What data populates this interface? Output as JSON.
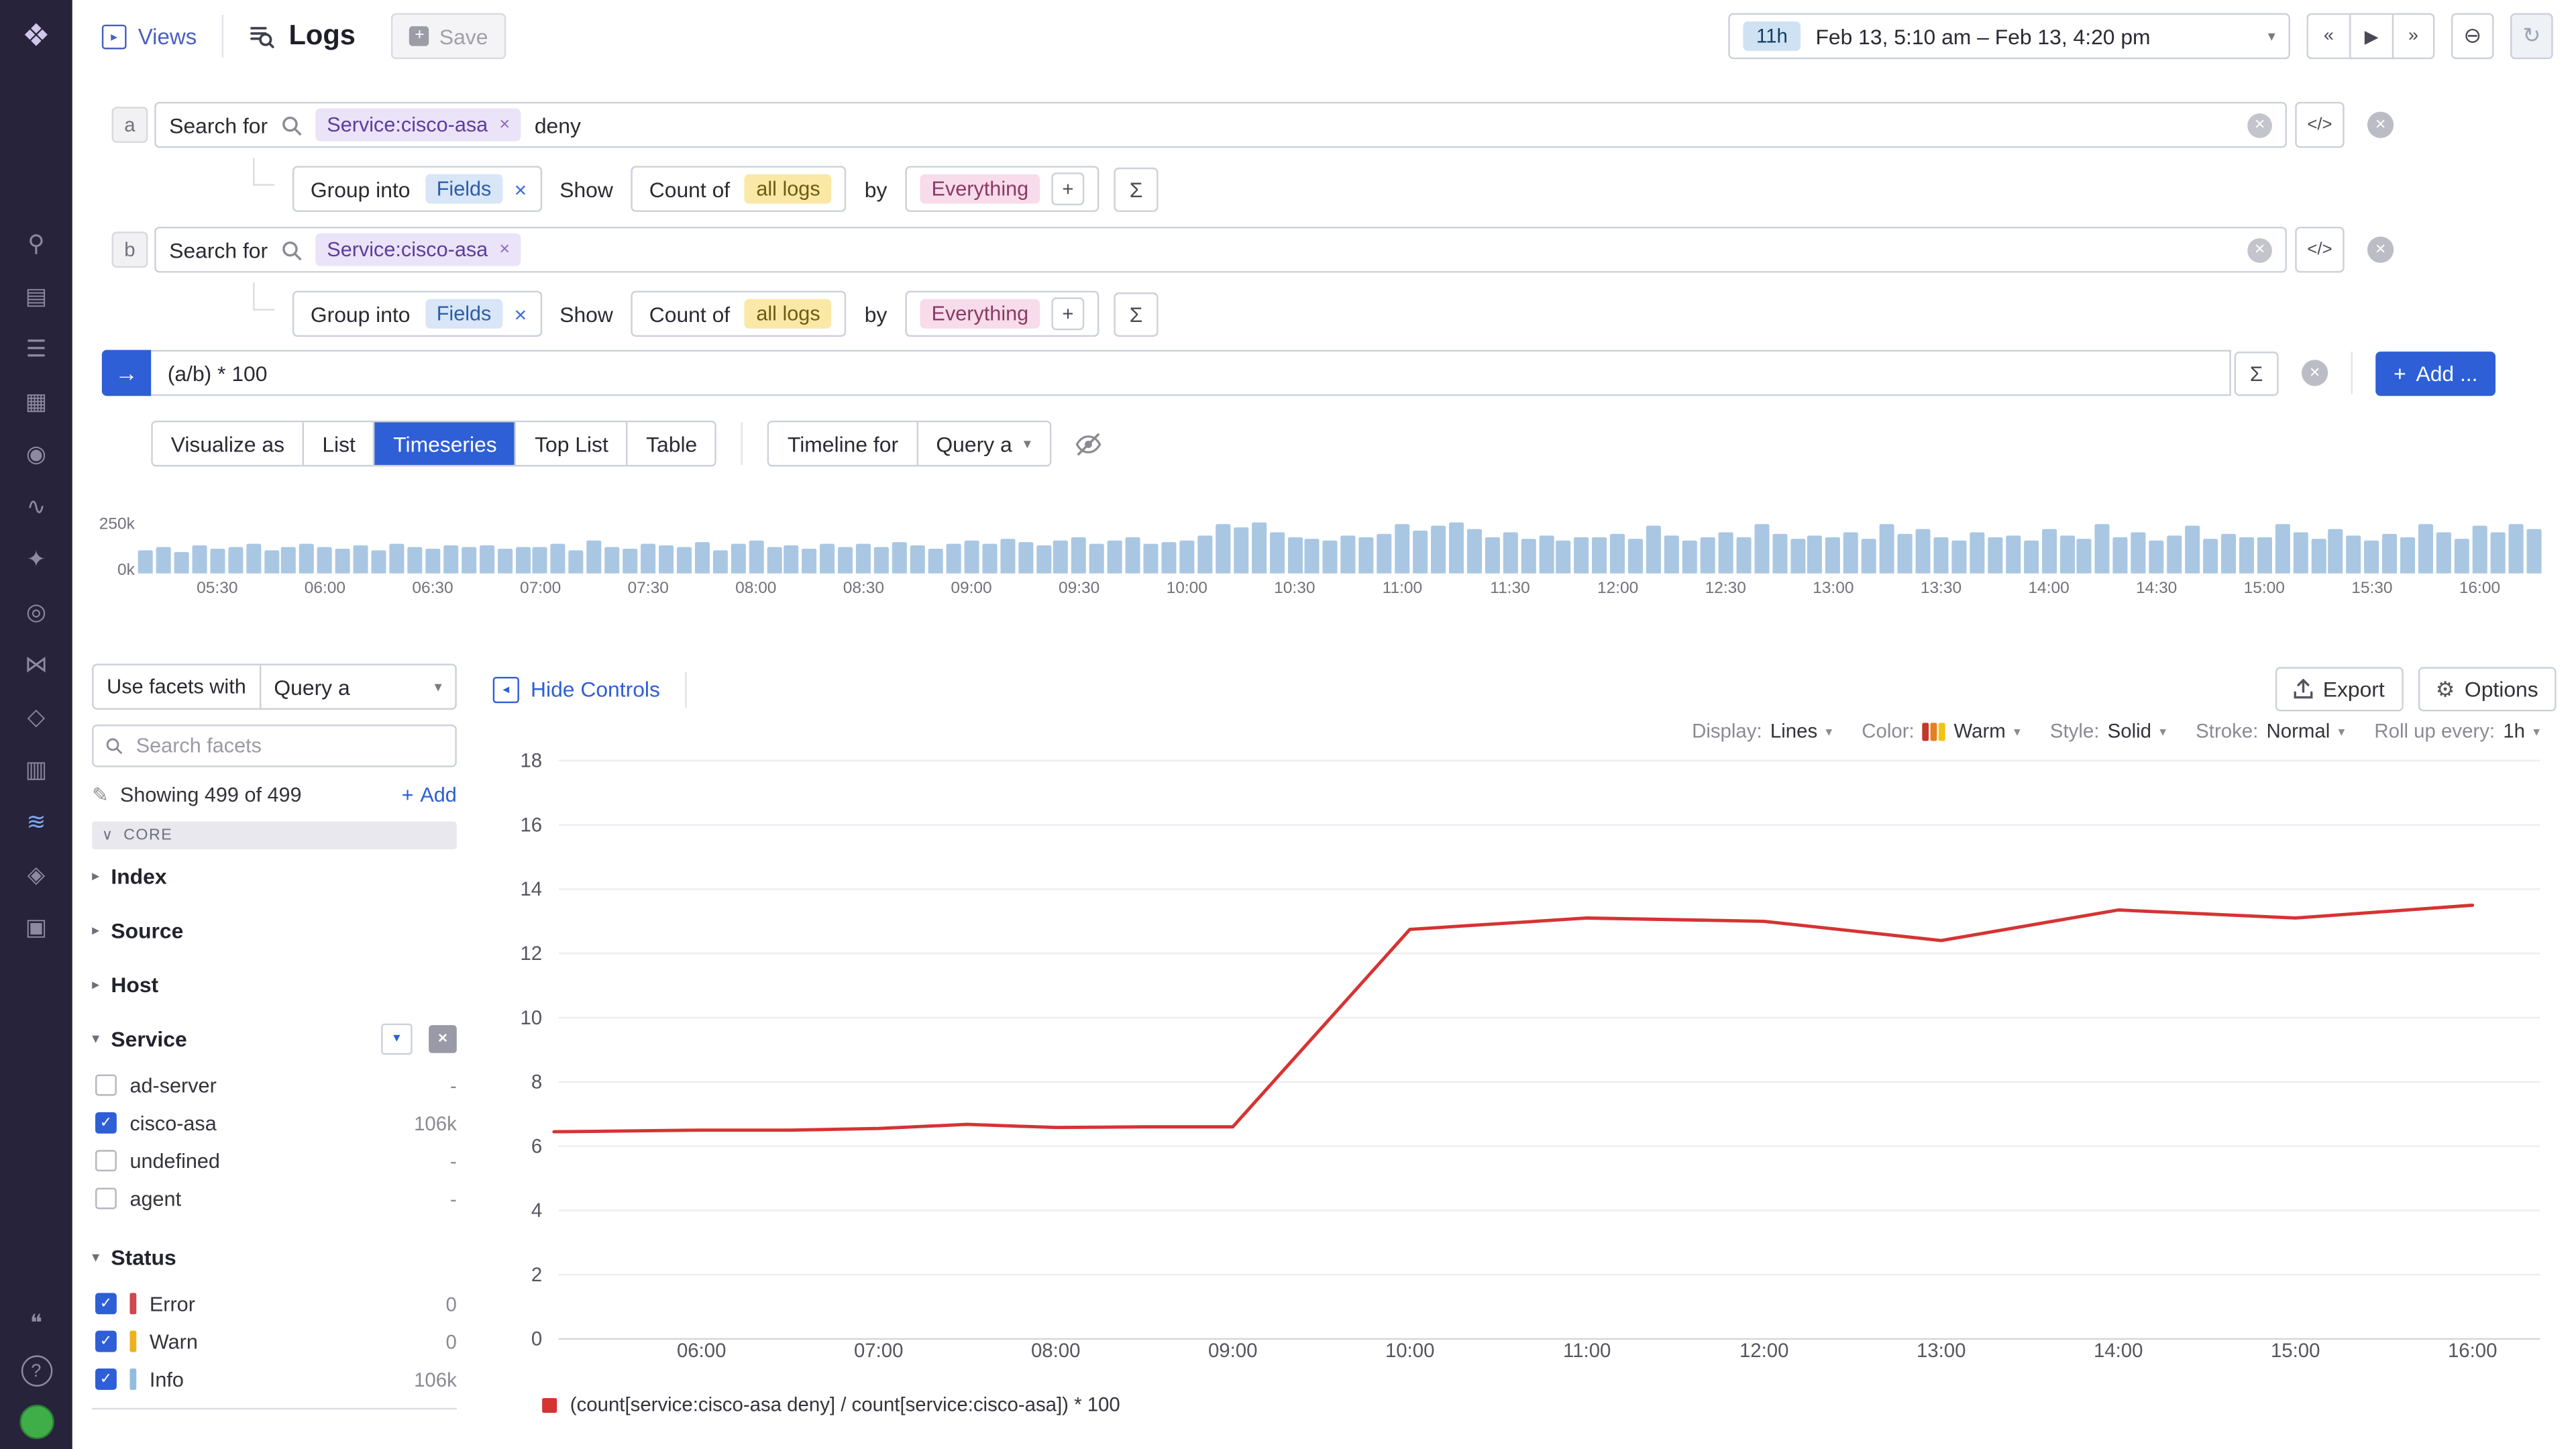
{
  "colors": {
    "accent": "#2e5fd7",
    "timeline-bar": "#a9c7e3",
    "tag-bg": "#ebe3f7",
    "tag-text": "#5b3d9e",
    "pill-blue-bg": "#d8e6f7",
    "pill-blue-text": "#2e5da8",
    "pill-yellow-bg": "#fae9a6",
    "pill-yellow-text": "#6f5a11",
    "pill-pink-bg": "#f8dceb",
    "pill-pink-text": "#8a3a64"
  },
  "icons": {
    "sigma": "Σ",
    "plus": "+",
    "close": "×",
    "caret_down": "▾",
    "chevron_down": "∨",
    "arrow_right": "→",
    "pencil": "✎",
    "gear": "⚙",
    "filter_funnel": "▼",
    "views": "▸",
    "hide_chevron": "◂",
    "check": "✓",
    "zoom_out": "⊖",
    "refresh": "↻",
    "help": "?",
    "chat": "❝"
  },
  "sidebar": {
    "logo_glyph": "❖",
    "icons": [
      {
        "name": "search",
        "glyph": "⚲"
      },
      {
        "name": "infrastructure",
        "glyph": "▤"
      },
      {
        "name": "events",
        "glyph": "☰"
      },
      {
        "name": "dashboards",
        "glyph": "▦"
      },
      {
        "name": "monitors",
        "glyph": "◉"
      },
      {
        "name": "metrics",
        "glyph": "∿"
      },
      {
        "name": "apm",
        "glyph": "✦"
      },
      {
        "name": "watchdog",
        "glyph": "◎"
      },
      {
        "name": "network",
        "glyph": "⋈"
      },
      {
        "name": "synthetics",
        "glyph": "◇"
      },
      {
        "name": "rum",
        "glyph": "▥"
      },
      {
        "name": "logs",
        "glyph": "≋",
        "active": true
      },
      {
        "name": "ci-cd",
        "glyph": "◈"
      },
      {
        "name": "app-security",
        "glyph": "▣"
      }
    ]
  },
  "header": {
    "views_label": "Views",
    "title": "Logs",
    "save_label": "Save",
    "time_range": {
      "duration": "11h",
      "label": "Feb 13, 5:10 am – Feb 13, 4:20 pm"
    },
    "nav_buttons": [
      {
        "name": "skip-back",
        "glyph": "«"
      },
      {
        "name": "play",
        "glyph": "▶"
      },
      {
        "name": "skip-forward",
        "glyph": "»"
      }
    ]
  },
  "query_builder": {
    "rows": [
      {
        "id": "a",
        "search_label": "Search for",
        "tag": "Service:cisco-asa",
        "term": "deny"
      },
      {
        "id": "b",
        "search_label": "Search for",
        "tag": "Service:cisco-asa",
        "term": ""
      }
    ],
    "group_controls": {
      "group_into_label": "Group into",
      "group_value": "Fields",
      "show_label": "Show",
      "count_label": "Count of",
      "count_value": "all logs",
      "by_label": "by",
      "by_value": "Everything"
    },
    "formula": {
      "expression": "(a/b) * 100",
      "add_button_label": "Add ..."
    },
    "code_button_label": "</>"
  },
  "visualize": {
    "label": "Visualize as",
    "options": [
      "List",
      "Timeseries",
      "Top List",
      "Table"
    ],
    "active_option": "Timeseries",
    "timeline_label": "Timeline for",
    "timeline_value": "Query a"
  },
  "facet_panel": {
    "use_facets_label": "Use facets with",
    "use_facets_value": "Query a",
    "search_placeholder": "Search facets",
    "showing_text": "Showing 499 of 499",
    "add_label": "Add",
    "section_label": "CORE",
    "collapsed_groups": [
      "Index",
      "Source",
      "Host"
    ],
    "service_group": {
      "label": "Service",
      "items": [
        {
          "label": "ad-server",
          "checked": false,
          "count": "-"
        },
        {
          "label": "cisco-asa",
          "checked": true,
          "count": "106k"
        },
        {
          "label": "undefined",
          "checked": false,
          "count": "-"
        },
        {
          "label": "agent",
          "checked": false,
          "count": "-"
        }
      ]
    },
    "status_group": {
      "label": "Status",
      "items": [
        {
          "label": "Error",
          "checked": true,
          "count": "0",
          "color": "#d0474d"
        },
        {
          "label": "Warn",
          "checked": true,
          "count": "0",
          "color": "#efb11b"
        },
        {
          "label": "Info",
          "checked": true,
          "count": "106k",
          "color": "#94bcdf"
        }
      ]
    }
  },
  "chart_panel": {
    "hide_controls_label": "Hide Controls",
    "export_label": "Export",
    "options_label": "Options",
    "controls": [
      {
        "label": "Display:",
        "value": "Lines"
      },
      {
        "label": "Color:",
        "value": "Warm",
        "swatch": [
          "#c0392b",
          "#e67e22",
          "#f1c40f"
        ]
      },
      {
        "label": "Style:",
        "value": "Solid"
      },
      {
        "label": "Stroke:",
        "value": "Normal"
      },
      {
        "label": "Roll up every:",
        "value": "1h"
      }
    ],
    "legend_label": "(count[service:cisco-asa deny] / count[service:cisco-asa]) * 100",
    "legend_color": "#d63333"
  },
  "chart_data": [
    {
      "type": "bar",
      "title": "Log volume timeline",
      "x_start": "05:10",
      "interval_minutes": 5,
      "unit": "k",
      "ylim": [
        0,
        250
      ],
      "y_tick_labels": [
        "0k",
        "250k"
      ],
      "x_labels": [
        "05:30",
        "06:00",
        "06:30",
        "07:00",
        "07:30",
        "08:00",
        "08:30",
        "09:00",
        "09:30",
        "10:00",
        "10:30",
        "11:00",
        "11:30",
        "12:00",
        "12:30",
        "13:00",
        "13:30",
        "14:00",
        "14:30",
        "15:00",
        "15:30",
        "16:00"
      ],
      "values": [
        108,
        122,
        101,
        128,
        114,
        119,
        138,
        109,
        124,
        133,
        118,
        112,
        129,
        107,
        137,
        123,
        113,
        132,
        119,
        127,
        111,
        125,
        121,
        134,
        108,
        148,
        124,
        113,
        139,
        128,
        118,
        144,
        109,
        133,
        152,
        119,
        129,
        114,
        138,
        124,
        134,
        118,
        147,
        129,
        112,
        139,
        149,
        134,
        158,
        143,
        128,
        153,
        168,
        139,
        149,
        163,
        133,
        144,
        153,
        178,
        228,
        213,
        238,
        188,
        168,
        158,
        148,
        173,
        163,
        183,
        229,
        198,
        218,
        238,
        208,
        168,
        188,
        158,
        178,
        148,
        168,
        163,
        183,
        158,
        218,
        173,
        148,
        163,
        188,
        168,
        228,
        183,
        158,
        173,
        168,
        193,
        158,
        228,
        183,
        208,
        168,
        153,
        188,
        163,
        178,
        148,
        208,
        178,
        158,
        228,
        168,
        193,
        153,
        173,
        218,
        158,
        183,
        168,
        163,
        228,
        188,
        158,
        208,
        173,
        148,
        183,
        168,
        228,
        193,
        158,
        218,
        188,
        228,
        203
      ]
    },
    {
      "type": "line",
      "ylim": [
        0,
        18
      ],
      "y_tick_step": 2,
      "grid": true,
      "legend_position": "bottom",
      "x_labels": [
        "06:00",
        "07:00",
        "08:00",
        "09:00",
        "10:00",
        "11:00",
        "12:00",
        "13:00",
        "14:00",
        "15:00",
        "16:00"
      ],
      "series": [
        {
          "name": "(count[service:cisco-asa deny] / count[service:cisco-asa]) * 100",
          "color": "#d63333",
          "points": [
            [
              "05:10",
              6.45
            ],
            [
              "06:00",
              6.5
            ],
            [
              "06:30",
              6.5
            ],
            [
              "07:00",
              6.55
            ],
            [
              "07:30",
              6.68
            ],
            [
              "08:00",
              6.58
            ],
            [
              "08:30",
              6.6
            ],
            [
              "09:00",
              6.6
            ],
            [
              "10:00",
              12.75
            ],
            [
              "11:00",
              13.1
            ],
            [
              "12:00",
              13.0
            ],
            [
              "13:00",
              12.4
            ],
            [
              "14:00",
              13.35
            ],
            [
              "15:00",
              13.1
            ],
            [
              "16:00",
              13.5
            ]
          ]
        }
      ]
    }
  ]
}
